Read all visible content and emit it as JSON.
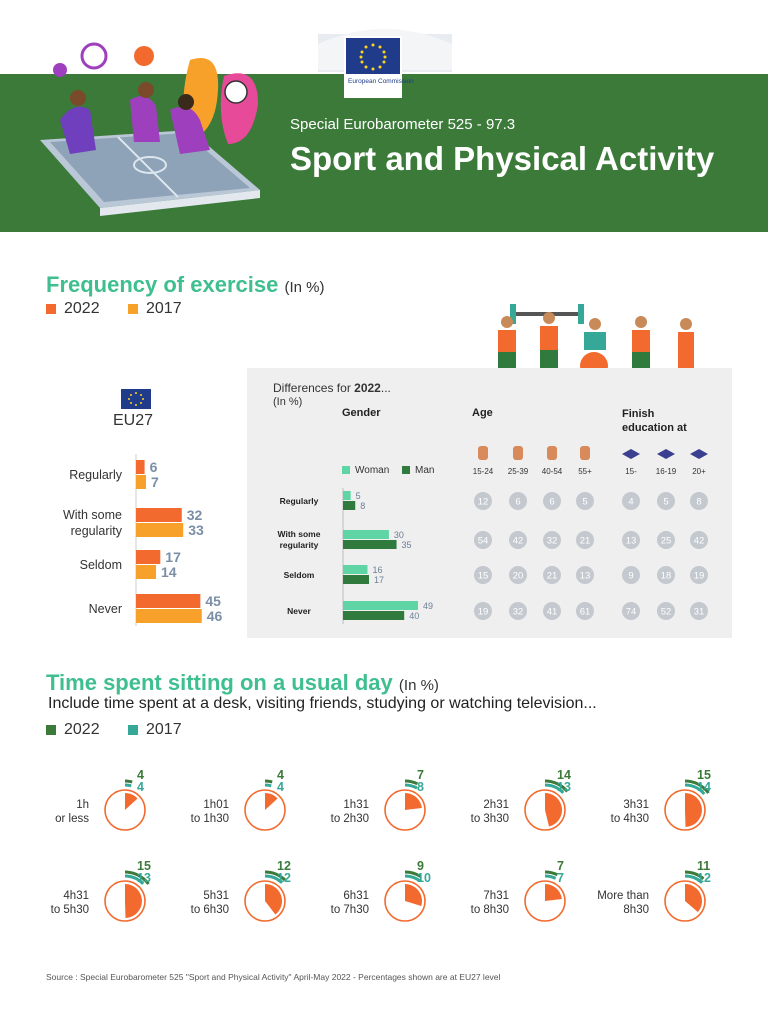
{
  "header": {
    "eyebrow": "Special Eurobarometer 525 - 97.3",
    "title": "Sport and Physical Activity",
    "logo_text": "European Commission",
    "banner_color": "#3c7a3a"
  },
  "frequency": {
    "title": "Frequency of exercise",
    "unit": "(In %)",
    "legend": [
      {
        "label": "2022",
        "color": "#f26a2e"
      },
      {
        "label": "2017",
        "color": "#f7a12b"
      }
    ],
    "eu_label": "EU27"
  },
  "differences": {
    "title_prefix": "Differences for ",
    "title_year": "2022",
    "title_suffix": "...",
    "unit": "(In %)",
    "gender_label": "Gender",
    "gender_legend": [
      {
        "label": "Woman",
        "color": "#5fd4a5"
      },
      {
        "label": "Man",
        "color": "#2f7a3c"
      }
    ],
    "age_label": "Age",
    "edu_label_line1": "Finish",
    "edu_label_line2": "education at",
    "age_groups": [
      "15-24",
      "25-39",
      "40-54",
      "55+"
    ],
    "edu_groups": [
      "15-",
      "16-19",
      "20+"
    ]
  },
  "sitting": {
    "title": "Time spent sitting on a usual day",
    "unit": "(In %)",
    "subtitle": "Include time spent at a desk, visiting friends, studying or watching television...",
    "legend": [
      {
        "label": "2022",
        "color": "#3c7a3a"
      },
      {
        "label": "2017",
        "color": "#36a897"
      }
    ]
  },
  "source": "Source : Special Eurobarometer 525 \"Sport and Physical Activity\" April-May 2022 - Percentages shown are at EU27 level",
  "chart_data": [
    {
      "type": "bar",
      "title": "Frequency of exercise",
      "categories": [
        "Regularly",
        "With some regularity",
        "Seldom",
        "Never"
      ],
      "category_lines": [
        [
          "Regularly"
        ],
        [
          "With some",
          "regularity"
        ],
        [
          "Seldom"
        ],
        [
          "Never"
        ]
      ],
      "series": [
        {
          "name": "2022",
          "values": [
            6,
            32,
            17,
            45
          ],
          "color": "#f26a2e"
        },
        {
          "name": "2017",
          "values": [
            7,
            33,
            14,
            46
          ],
          "color": "#f7a12b"
        }
      ]
    },
    {
      "type": "bar",
      "title": "Differences for 2022... Gender",
      "categories": [
        "Regularly",
        "With some regularity",
        "Seldom",
        "Never"
      ],
      "category_lines": [
        [
          "Regularly"
        ],
        [
          "With some",
          "regularity"
        ],
        [
          "Seldom"
        ],
        [
          "Never"
        ]
      ],
      "series": [
        {
          "name": "Woman",
          "values": [
            5,
            30,
            16,
            49
          ],
          "color": "#5fd4a5"
        },
        {
          "name": "Man",
          "values": [
            8,
            35,
            17,
            40
          ],
          "color": "#2f7a3c"
        }
      ]
    },
    {
      "type": "table",
      "title": "Differences for 2022... Age",
      "columns": [
        "15-24",
        "25-39",
        "40-54",
        "55+"
      ],
      "rows": [
        "Regularly",
        "With some regularity",
        "Seldom",
        "Never"
      ],
      "values": [
        [
          12,
          6,
          6,
          5
        ],
        [
          54,
          42,
          32,
          21
        ],
        [
          15,
          20,
          21,
          13
        ],
        [
          19,
          32,
          41,
          61
        ]
      ]
    },
    {
      "type": "table",
      "title": "Differences for 2022... Finish education at",
      "columns": [
        "15-",
        "16-19",
        "20+"
      ],
      "rows": [
        "Regularly",
        "With some regularity",
        "Seldom",
        "Never"
      ],
      "values": [
        [
          4,
          5,
          8
        ],
        [
          13,
          25,
          42
        ],
        [
          9,
          18,
          19
        ],
        [
          74,
          52,
          31
        ]
      ]
    },
    {
      "type": "pie",
      "title": "Time spent sitting on a usual day",
      "categories": [
        "1h or less",
        "1h01 to 1h30",
        "1h31 to 2h30",
        "2h31 to 3h30",
        "3h31 to 4h30",
        "4h31 to 5h30",
        "5h31 to 6h30",
        "6h31 to 7h30",
        "7h31 to 8h30",
        "More than 8h30"
      ],
      "category_lines": [
        [
          "1h",
          "or less"
        ],
        [
          "1h01",
          "to 1h30"
        ],
        [
          "1h31",
          "to 2h30"
        ],
        [
          "2h31",
          "to 3h30"
        ],
        [
          "3h31",
          "to 4h30"
        ],
        [
          "4h31",
          "to 5h30"
        ],
        [
          "5h31",
          "to 6h30"
        ],
        [
          "6h31",
          "to 7h30"
        ],
        [
          "7h31",
          "to 8h30"
        ],
        [
          "More than",
          "8h30"
        ]
      ],
      "series": [
        {
          "name": "2022",
          "values": [
            4,
            4,
            7,
            14,
            15,
            15,
            12,
            9,
            7,
            11
          ],
          "color": "#3c7a3a"
        },
        {
          "name": "2017",
          "values": [
            4,
            4,
            8,
            13,
            14,
            13,
            12,
            10,
            7,
            12
          ],
          "color": "#36a897"
        }
      ]
    }
  ]
}
